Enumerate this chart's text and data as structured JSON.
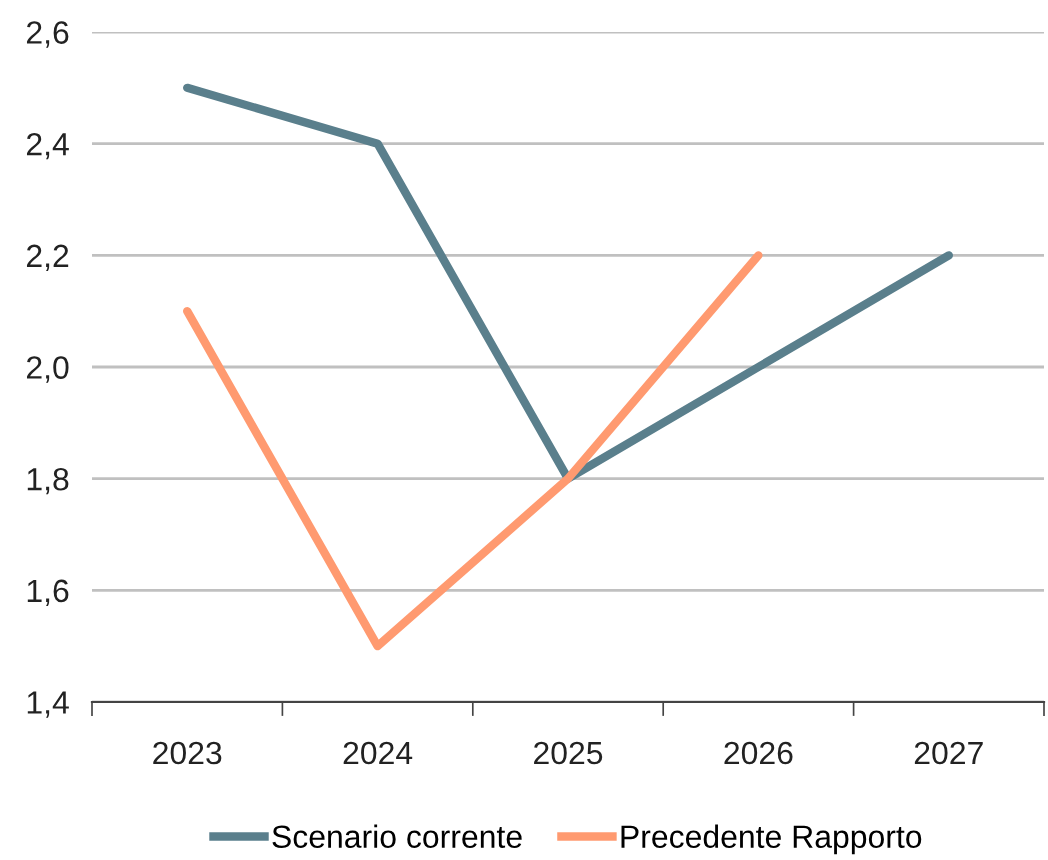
{
  "chart_data": {
    "type": "line",
    "categories": [
      "2023",
      "2024",
      "2025",
      "2026",
      "2027"
    ],
    "series": [
      {
        "name": "Scenario corrente",
        "color": "#5a7f8c",
        "values": [
          2.5,
          2.4,
          1.8,
          2.0,
          2.2
        ]
      },
      {
        "name": "Precedente Rapporto",
        "color": "#ff9a70",
        "values": [
          2.1,
          1.5,
          1.8,
          2.2,
          null
        ]
      }
    ],
    "ylim": [
      1.4,
      2.6
    ],
    "yticks": [
      {
        "value": 1.4,
        "label": "1,4"
      },
      {
        "value": 1.6,
        "label": "1,6"
      },
      {
        "value": 1.8,
        "label": "1,8"
      },
      {
        "value": 2.0,
        "label": "2,0"
      },
      {
        "value": 2.2,
        "label": "2,2"
      },
      {
        "value": 2.4,
        "label": "2,4"
      },
      {
        "value": 2.6,
        "label": "2,6"
      }
    ],
    "grid": "y",
    "legend": "bottom",
    "marker": "none",
    "line_style": "solid"
  }
}
